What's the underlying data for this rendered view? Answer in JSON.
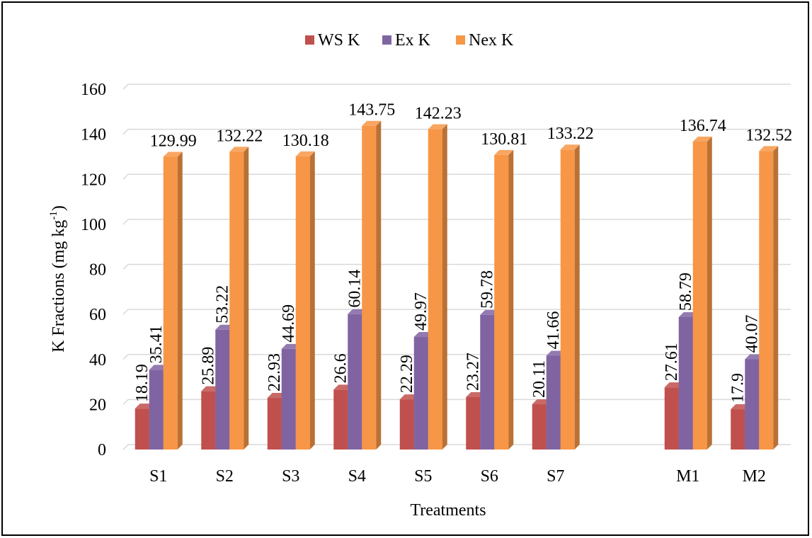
{
  "chart_data": {
    "type": "bar",
    "style": "3d-clustered-column",
    "title": "",
    "xlabel": "Treatments",
    "ylabel": "K Fractions (mg kg",
    "ylabel_sup": "-1",
    "ylabel_close": ")",
    "ylim": [
      0,
      160
    ],
    "yticks": [
      0,
      20,
      40,
      60,
      80,
      100,
      120,
      140,
      160
    ],
    "grid": true,
    "legend_position": "top",
    "categories": [
      "S1",
      "S2",
      "S3",
      "S4",
      "S5",
      "S6",
      "S7",
      "",
      "M1",
      "M2"
    ],
    "series": [
      {
        "name": "WS K",
        "color": "#c0504d",
        "values": [
          18.19,
          25.89,
          22.93,
          26.6,
          22.29,
          23.27,
          20.11,
          null,
          27.61,
          17.9
        ],
        "labels": [
          "18.19",
          "25.89",
          "22.93",
          "26.6",
          "22.29",
          "23.27",
          "20.11",
          "",
          "27.61",
          "17.9"
        ]
      },
      {
        "name": "Ex K",
        "color": "#8064a2",
        "values": [
          35.41,
          53.22,
          44.69,
          60.14,
          49.97,
          59.78,
          41.66,
          null,
          58.79,
          40.07
        ],
        "labels": [
          "35.41",
          "53.22",
          "44.69",
          "60.14",
          "49.97",
          "59.78",
          "41.66",
          "",
          "58.79",
          "40.07"
        ]
      },
      {
        "name": "Nex K",
        "color": "#f79646",
        "values": [
          129.99,
          132.22,
          130.18,
          143.75,
          142.23,
          130.81,
          133.22,
          null,
          136.74,
          132.52
        ],
        "labels": [
          "129.99",
          "132.22",
          "130.18",
          "143.75",
          "142.23",
          "130.81",
          "133.22",
          "",
          "136.74",
          "132.52"
        ]
      }
    ]
  }
}
